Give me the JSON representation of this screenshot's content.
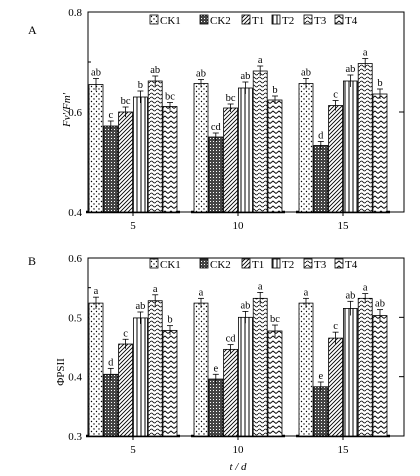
{
  "chart_data": [
    {
      "panel": "A",
      "type": "bar",
      "ylabel": "Fv'/Fm'",
      "ylim": [
        0.4,
        0.8
      ],
      "yticks": [
        "0.4",
        "0.6",
        "0.8"
      ],
      "categories": [
        "5",
        "10",
        "15"
      ],
      "series": [
        {
          "name": "CK1",
          "pattern": "dots",
          "values": [
            0.655,
            0.657,
            0.657
          ],
          "errors": [
            0.012,
            0.008,
            0.01
          ],
          "letters": [
            "ab",
            "ab",
            "ab"
          ]
        },
        {
          "name": "CK2",
          "pattern": "dense",
          "values": [
            0.572,
            0.55,
            0.533
          ],
          "errors": [
            0.01,
            0.008,
            0.008
          ],
          "letters": [
            "c",
            "cd",
            "d"
          ]
        },
        {
          "name": "T1",
          "pattern": "diag",
          "values": [
            0.6,
            0.608,
            0.613
          ],
          "errors": [
            0.01,
            0.008,
            0.01
          ],
          "letters": [
            "bc",
            "bc",
            "c"
          ]
        },
        {
          "name": "T2",
          "pattern": "vert",
          "values": [
            0.63,
            0.648,
            0.662
          ],
          "errors": [
            0.012,
            0.012,
            0.012
          ],
          "letters": [
            "b",
            "ab",
            "ab"
          ]
        },
        {
          "name": "T3",
          "pattern": "waves",
          "values": [
            0.662,
            0.682,
            0.697
          ],
          "errors": [
            0.01,
            0.01,
            0.01
          ],
          "letters": [
            "ab",
            "a",
            "a"
          ]
        },
        {
          "name": "T4",
          "pattern": "zigzag",
          "values": [
            0.611,
            0.624,
            0.636
          ],
          "errors": [
            0.008,
            0.008,
            0.01
          ],
          "letters": [
            "bc",
            "b",
            "b"
          ]
        }
      ]
    },
    {
      "panel": "B",
      "type": "bar",
      "ylabel": "ΦPSII",
      "xlabel": "t / d",
      "ylim": [
        0.3,
        0.6
      ],
      "yticks": [
        "0.3",
        "0.4",
        "0.5",
        "0.6"
      ],
      "categories": [
        "5",
        "10",
        "15"
      ],
      "series": [
        {
          "name": "CK1",
          "pattern": "dots",
          "values": [
            0.524,
            0.524,
            0.524
          ],
          "errors": [
            0.01,
            0.008,
            0.008
          ],
          "letters": [
            "a",
            "a",
            "a"
          ]
        },
        {
          "name": "CK2",
          "pattern": "dense",
          "values": [
            0.404,
            0.396,
            0.383
          ],
          "errors": [
            0.01,
            0.008,
            0.008
          ],
          "letters": [
            "d",
            "e",
            "e"
          ]
        },
        {
          "name": "T1",
          "pattern": "diag",
          "values": [
            0.455,
            0.446,
            0.465
          ],
          "errors": [
            0.008,
            0.008,
            0.01
          ],
          "letters": [
            "c",
            "cd",
            "c"
          ]
        },
        {
          "name": "T2",
          "pattern": "vert",
          "values": [
            0.499,
            0.5,
            0.515
          ],
          "errors": [
            0.01,
            0.01,
            0.012
          ],
          "letters": [
            "ab",
            "ab",
            "ab"
          ]
        },
        {
          "name": "T3",
          "pattern": "waves",
          "values": [
            0.528,
            0.532,
            0.532
          ],
          "errors": [
            0.01,
            0.01,
            0.008
          ],
          "letters": [
            "a",
            "a",
            "a"
          ]
        },
        {
          "name": "T4",
          "pattern": "zigzag",
          "values": [
            0.478,
            0.477,
            0.503
          ],
          "errors": [
            0.008,
            0.01,
            0.01
          ],
          "letters": [
            "b",
            "bc",
            "ab"
          ]
        }
      ]
    }
  ]
}
